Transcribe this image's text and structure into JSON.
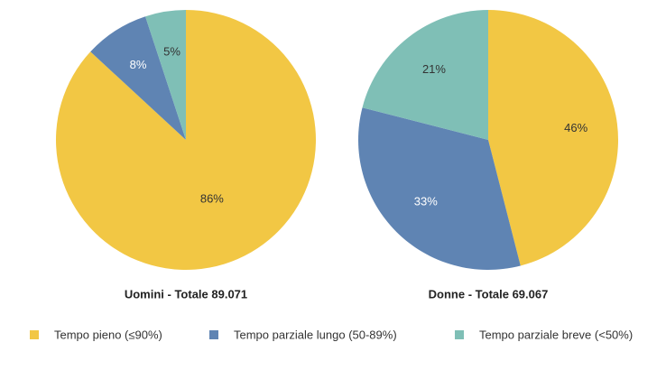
{
  "chart_data": [
    {
      "type": "pie",
      "title": "Uomini - Totale 89.071",
      "categories": [
        "Tempo pieno (≤90%)",
        "Tempo parziale lungo (50-89%)",
        "Tempo parziale breve (<50%)"
      ],
      "values": [
        86,
        8,
        5
      ],
      "value_labels": [
        "86%",
        "8%",
        "5%"
      ],
      "colors": [
        "#f2c744",
        "#5f84b3",
        "#7fbfb6"
      ]
    },
    {
      "type": "pie",
      "title": "Donne - Totale 69.067",
      "categories": [
        "Tempo pieno (≤90%)",
        "Tempo parziale lungo (50-89%)",
        "Tempo parziale breve (<50%)"
      ],
      "values": [
        46,
        33,
        21
      ],
      "value_labels": [
        "46%",
        "33%",
        "21%"
      ],
      "colors": [
        "#f2c744",
        "#5f84b3",
        "#7fbfb6"
      ]
    }
  ]
}
